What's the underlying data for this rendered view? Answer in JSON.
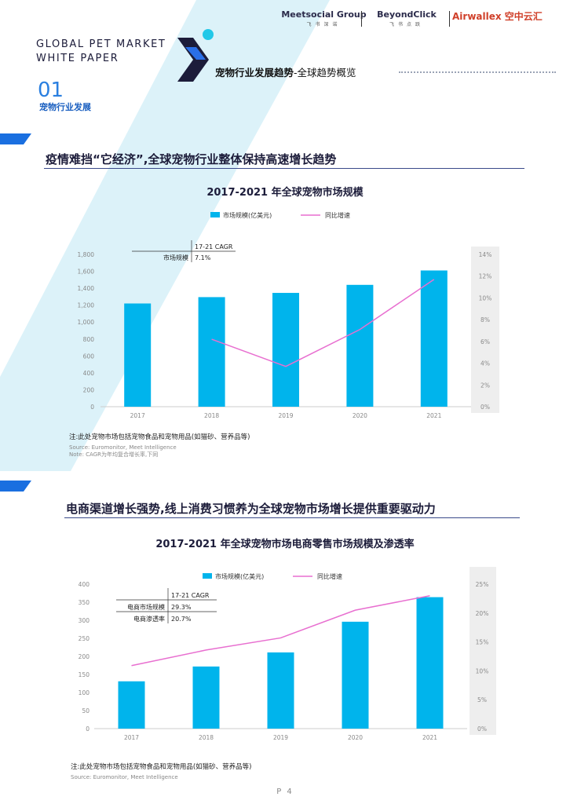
{
  "header": {
    "brand_title_line1": "GLOBAL PET MARKET",
    "brand_title_line2": "WHITE PAPER",
    "logos": [
      {
        "name": "Meetsocial Group",
        "sub": "飞书深诺"
      },
      {
        "name": "BeyondClick",
        "sub": "飞书点跃"
      },
      {
        "name": "Airwallex 空中云汇",
        "sub": ""
      }
    ],
    "section_number": "01",
    "section_label": "宠物行业发展",
    "topic_bold": "宠物行业发展趋势",
    "topic_rest": "-全球趋势概览"
  },
  "colors": {
    "bar": "#00b4ec",
    "line": "#e86fd0",
    "accent": "#1a6fe0",
    "deco_light": "#d6f0f8",
    "deco_dark": "#1c1c3a",
    "deco_cyan": "#22c8e8"
  },
  "section1": {
    "heading": "疫情难挡“它经济”,全球宠物行业整体保持高速增长趋势",
    "note": "注:此处宠物市场包括宠物食品和宠物用品(如猫砂、营养品等)",
    "source": "Source: Euromonitor, Meet Intelligence",
    "source_note": "Note: CAGR为年均复合增长率,下同"
  },
  "section2": {
    "heading": "电商渠道增长强势,线上消费习惯养为全球宠物市场增长提供重要驱动力",
    "note": "注:此处宠物市场包括宠物食品和宠物用品(如猫砂、营养品等)",
    "source": "Source: Euromonitor, Meet Intelligence"
  },
  "page_number": "P 4",
  "chart_data": [
    {
      "type": "bar",
      "title": "2017-2021 年全球宠物市场规模",
      "categories": [
        "2017",
        "2018",
        "2019",
        "2020",
        "2021"
      ],
      "y_ticks": [
        "0",
        "200",
        "400",
        "600",
        "800",
        "1,000",
        "1,200",
        "1,400",
        "1,600",
        "1,800"
      ],
      "y2_ticks": [
        "0%",
        "2%",
        "4%",
        "6%",
        "8%",
        "10%",
        "12%",
        "14%"
      ],
      "ylim": [
        0,
        1800
      ],
      "y2lim": [
        0,
        14
      ],
      "series": [
        {
          "name": "市场规模(亿美元)",
          "type": "bar",
          "axis": "left",
          "values": [
            1220,
            1295,
            1345,
            1440,
            1610
          ]
        },
        {
          "name": "同比增速",
          "type": "line",
          "axis": "right",
          "values": [
            null,
            6.2,
            3.7,
            7.1,
            11.7
          ]
        }
      ],
      "cagr_table": {
        "header": "17-21 CAGR",
        "rows": [
          {
            "label": "市场规模",
            "value": "7.1%"
          }
        ]
      },
      "legend": "top-center",
      "grid": false
    },
    {
      "type": "bar",
      "title": "2017-2021 年全球宠物市场电商零售市场规模及渗透率",
      "categories": [
        "2017",
        "2018",
        "2019",
        "2020",
        "2021"
      ],
      "y_ticks": [
        "0",
        "50",
        "100",
        "150",
        "200",
        "250",
        "300",
        "350",
        "400"
      ],
      "y2_ticks": [
        "0%",
        "5%",
        "10%",
        "15%",
        "20%",
        "25%"
      ],
      "ylim": [
        0,
        400
      ],
      "y2lim": [
        0,
        25
      ],
      "series": [
        {
          "name": "市场规模(亿美元)",
          "type": "bar",
          "axis": "left",
          "values": [
            131,
            172,
            211,
            296,
            364
          ]
        },
        {
          "name": "同比增速",
          "type": "line",
          "axis": "right",
          "values": [
            10.9,
            13.6,
            15.7,
            20.5,
            23.0
          ]
        }
      ],
      "cagr_table": {
        "header": "17-21 CAGR",
        "rows": [
          {
            "label": "电商市场规模",
            "value": "29.3%"
          },
          {
            "label": "电商渗透率",
            "value": "20.7%"
          }
        ]
      },
      "legend": "top-center",
      "grid": false
    }
  ]
}
